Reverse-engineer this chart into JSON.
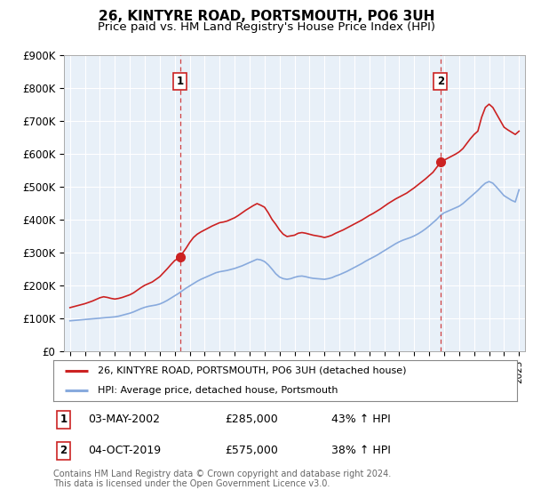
{
  "title": "26, KINTYRE ROAD, PORTSMOUTH, PO6 3UH",
  "subtitle": "Price paid vs. HM Land Registry's House Price Index (HPI)",
  "title_fontsize": 11,
  "subtitle_fontsize": 9.5,
  "ylim": [
    0,
    900000
  ],
  "yticks": [
    0,
    100000,
    200000,
    300000,
    400000,
    500000,
    600000,
    700000,
    800000,
    900000
  ],
  "ytick_labels": [
    "£0",
    "£100K",
    "£200K",
    "£300K",
    "£400K",
    "£500K",
    "£600K",
    "£700K",
    "£800K",
    "£900K"
  ],
  "xlim_start": 1994.6,
  "xlim_end": 2025.4,
  "background_color": "#ffffff",
  "plot_bg_color": "#e8f0f8",
  "grid_color": "#ffffff",
  "red_color": "#cc2222",
  "blue_color": "#88aadd",
  "dashed_line_color": "#cc2222",
  "legend_label_red": "26, KINTYRE ROAD, PORTSMOUTH, PO6 3UH (detached house)",
  "legend_label_blue": "HPI: Average price, detached house, Portsmouth",
  "point1_x": 2002.35,
  "point1_y": 285000,
  "point2_x": 2019.75,
  "point2_y": 575000,
  "point1_date": "03-MAY-2002",
  "point1_price": "£285,000",
  "point1_hpi": "43% ↑ HPI",
  "point2_date": "04-OCT-2019",
  "point2_price": "£575,000",
  "point2_hpi": "38% ↑ HPI",
  "footer_text": "Contains HM Land Registry data © Crown copyright and database right 2024.\nThis data is licensed under the Open Government Licence v3.0.",
  "red_line_x": [
    1995.0,
    1995.25,
    1995.5,
    1995.75,
    1996.0,
    1996.25,
    1996.5,
    1996.75,
    1997.0,
    1997.25,
    1997.5,
    1997.75,
    1998.0,
    1998.25,
    1998.5,
    1998.75,
    1999.0,
    1999.25,
    1999.5,
    1999.75,
    2000.0,
    2000.25,
    2000.5,
    2000.75,
    2001.0,
    2001.25,
    2001.5,
    2001.75,
    2002.0,
    2002.35,
    2002.5,
    2002.75,
    2003.0,
    2003.25,
    2003.5,
    2003.75,
    2004.0,
    2004.25,
    2004.5,
    2004.75,
    2005.0,
    2005.25,
    2005.5,
    2005.75,
    2006.0,
    2006.25,
    2006.5,
    2006.75,
    2007.0,
    2007.25,
    2007.5,
    2007.75,
    2008.0,
    2008.25,
    2008.5,
    2008.75,
    2009.0,
    2009.25,
    2009.5,
    2009.75,
    2010.0,
    2010.25,
    2010.5,
    2010.75,
    2011.0,
    2011.25,
    2011.5,
    2011.75,
    2012.0,
    2012.25,
    2012.5,
    2012.75,
    2013.0,
    2013.25,
    2013.5,
    2013.75,
    2014.0,
    2014.25,
    2014.5,
    2014.75,
    2015.0,
    2015.25,
    2015.5,
    2015.75,
    2016.0,
    2016.25,
    2016.5,
    2016.75,
    2017.0,
    2017.25,
    2017.5,
    2017.75,
    2018.0,
    2018.25,
    2018.5,
    2018.75,
    2019.0,
    2019.25,
    2019.5,
    2019.75,
    2020.0,
    2020.25,
    2020.5,
    2020.75,
    2021.0,
    2021.25,
    2021.5,
    2021.75,
    2022.0,
    2022.25,
    2022.5,
    2022.75,
    2023.0,
    2023.25,
    2023.5,
    2023.75,
    2024.0,
    2024.25,
    2024.5,
    2024.75,
    2025.0
  ],
  "red_line_y": [
    132000,
    135000,
    138000,
    141000,
    144000,
    148000,
    152000,
    157000,
    162000,
    165000,
    163000,
    160000,
    158000,
    160000,
    163000,
    167000,
    171000,
    177000,
    185000,
    193000,
    200000,
    205000,
    210000,
    218000,
    226000,
    238000,
    250000,
    263000,
    275000,
    285000,
    296000,
    312000,
    330000,
    345000,
    355000,
    362000,
    368000,
    374000,
    380000,
    385000,
    390000,
    392000,
    395000,
    400000,
    405000,
    412000,
    420000,
    428000,
    435000,
    442000,
    448000,
    443000,
    437000,
    420000,
    400000,
    385000,
    368000,
    355000,
    348000,
    350000,
    352000,
    358000,
    360000,
    358000,
    355000,
    352000,
    350000,
    348000,
    345000,
    348000,
    352000,
    358000,
    363000,
    368000,
    374000,
    380000,
    386000,
    392000,
    398000,
    405000,
    412000,
    418000,
    425000,
    432000,
    440000,
    448000,
    455000,
    462000,
    468000,
    474000,
    480000,
    488000,
    496000,
    505000,
    514000,
    523000,
    533000,
    543000,
    558000,
    572000,
    580000,
    586000,
    592000,
    598000,
    605000,
    615000,
    630000,
    645000,
    658000,
    668000,
    710000,
    740000,
    750000,
    740000,
    720000,
    700000,
    680000,
    672000,
    665000,
    658000,
    668000
  ],
  "blue_line_x": [
    1995.0,
    1995.25,
    1995.5,
    1995.75,
    1996.0,
    1996.25,
    1996.5,
    1996.75,
    1997.0,
    1997.25,
    1997.5,
    1997.75,
    1998.0,
    1998.25,
    1998.5,
    1998.75,
    1999.0,
    1999.25,
    1999.5,
    1999.75,
    2000.0,
    2000.25,
    2000.5,
    2000.75,
    2001.0,
    2001.25,
    2001.5,
    2001.75,
    2002.0,
    2002.25,
    2002.5,
    2002.75,
    2003.0,
    2003.25,
    2003.5,
    2003.75,
    2004.0,
    2004.25,
    2004.5,
    2004.75,
    2005.0,
    2005.25,
    2005.5,
    2005.75,
    2006.0,
    2006.25,
    2006.5,
    2006.75,
    2007.0,
    2007.25,
    2007.5,
    2007.75,
    2008.0,
    2008.25,
    2008.5,
    2008.75,
    2009.0,
    2009.25,
    2009.5,
    2009.75,
    2010.0,
    2010.25,
    2010.5,
    2010.75,
    2011.0,
    2011.25,
    2011.5,
    2011.75,
    2012.0,
    2012.25,
    2012.5,
    2012.75,
    2013.0,
    2013.25,
    2013.5,
    2013.75,
    2014.0,
    2014.25,
    2014.5,
    2014.75,
    2015.0,
    2015.25,
    2015.5,
    2015.75,
    2016.0,
    2016.25,
    2016.5,
    2016.75,
    2017.0,
    2017.25,
    2017.5,
    2017.75,
    2018.0,
    2018.25,
    2018.5,
    2018.75,
    2019.0,
    2019.25,
    2019.5,
    2019.75,
    2020.0,
    2020.25,
    2020.5,
    2020.75,
    2021.0,
    2021.25,
    2021.5,
    2021.75,
    2022.0,
    2022.25,
    2022.5,
    2022.75,
    2023.0,
    2023.25,
    2023.5,
    2023.75,
    2024.0,
    2024.25,
    2024.5,
    2024.75,
    2025.0
  ],
  "blue_line_y": [
    92000,
    93000,
    94000,
    95000,
    96000,
    97000,
    98000,
    99000,
    100000,
    101000,
    102000,
    103000,
    104000,
    106000,
    109000,
    112000,
    115000,
    119000,
    124000,
    129000,
    133000,
    136000,
    138000,
    140000,
    143000,
    148000,
    154000,
    161000,
    168000,
    175000,
    183000,
    191000,
    198000,
    205000,
    212000,
    218000,
    223000,
    228000,
    233000,
    238000,
    241000,
    243000,
    245000,
    248000,
    251000,
    255000,
    259000,
    264000,
    269000,
    274000,
    279000,
    277000,
    272000,
    262000,
    249000,
    235000,
    225000,
    220000,
    218000,
    220000,
    224000,
    227000,
    228000,
    226000,
    223000,
    221000,
    220000,
    219000,
    218000,
    220000,
    223000,
    228000,
    232000,
    237000,
    242000,
    248000,
    254000,
    260000,
    266000,
    273000,
    279000,
    285000,
    291000,
    298000,
    305000,
    312000,
    319000,
    326000,
    332000,
    337000,
    341000,
    345000,
    350000,
    356000,
    363000,
    371000,
    380000,
    390000,
    400000,
    412000,
    420000,
    425000,
    430000,
    435000,
    440000,
    448000,
    458000,
    468000,
    478000,
    488000,
    500000,
    510000,
    515000,
    510000,
    498000,
    485000,
    472000,
    465000,
    458000,
    453000,
    490000
  ]
}
